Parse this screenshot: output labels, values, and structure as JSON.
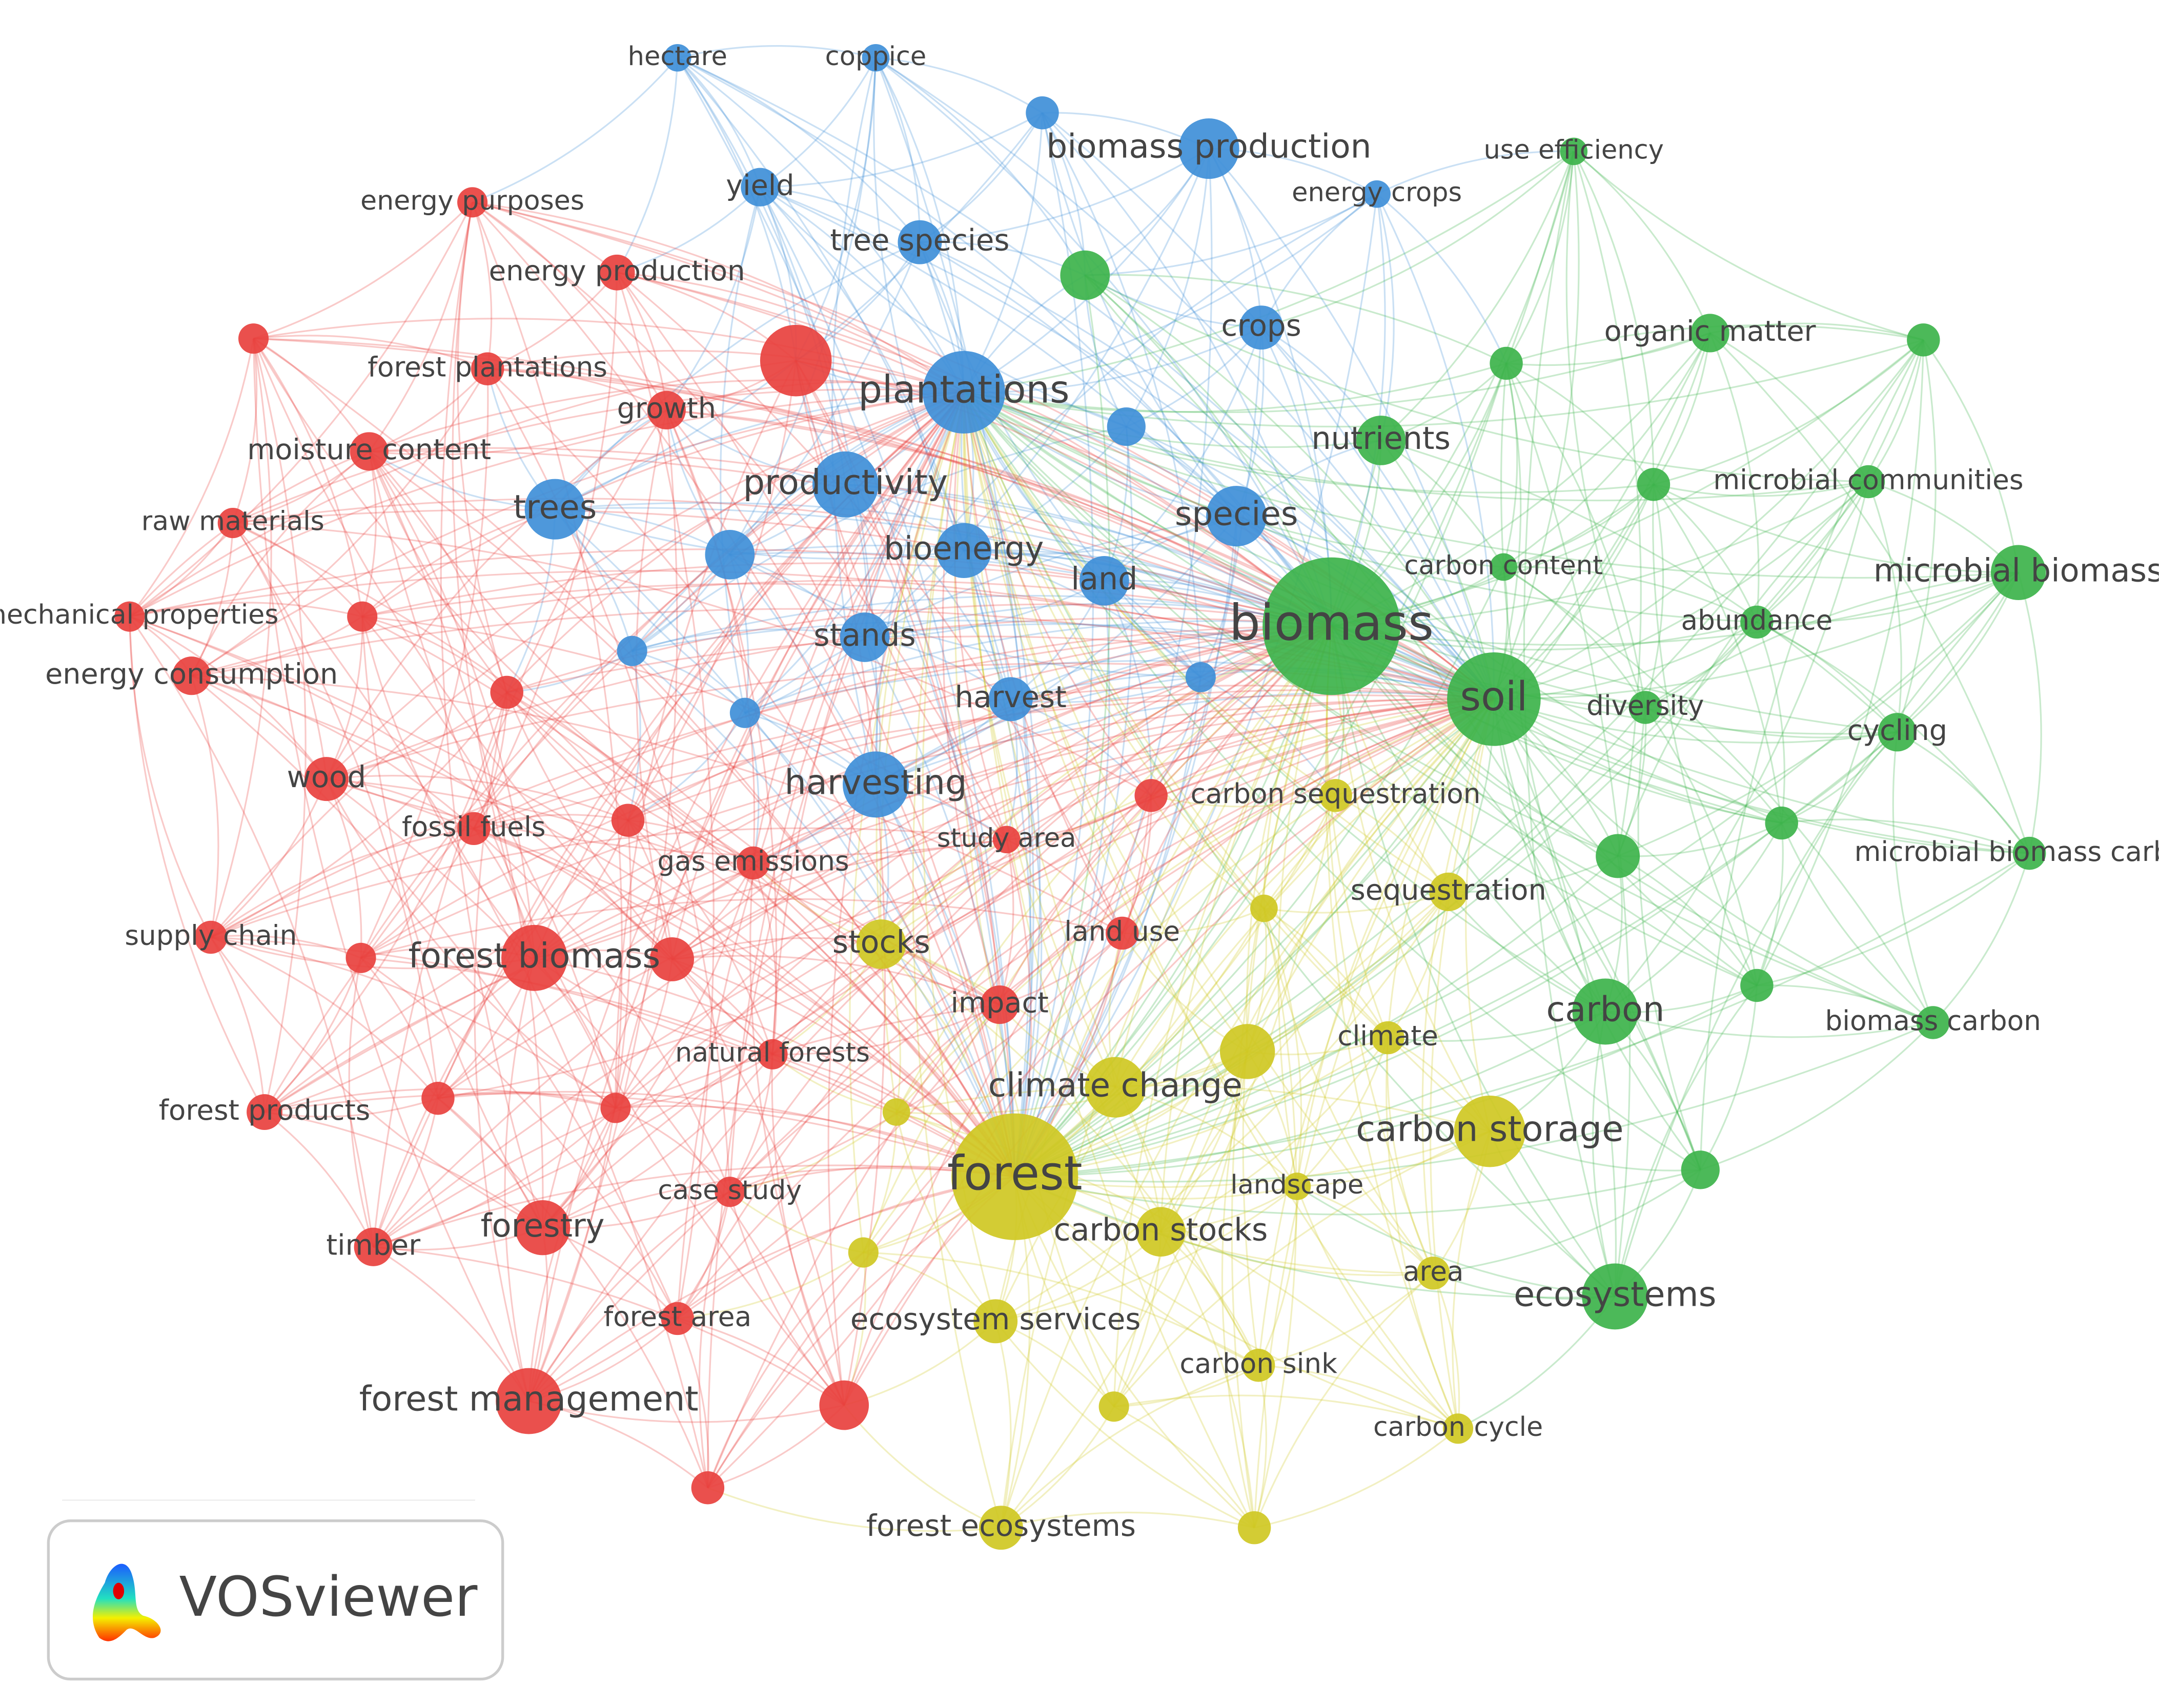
{
  "network": {
    "nodes": [
      {
        "label": "hectare",
        "color": "#3f8fd8"
      },
      {
        "label": "coppice",
        "color": "#3f8fd8"
      },
      {
        "label": null,
        "color": "#3f8fd8"
      },
      {
        "label": "biomass production",
        "color": "#3f8fd8"
      },
      {
        "label": "yield",
        "color": "#3f8fd8"
      },
      {
        "label": "tree species",
        "color": "#3f8fd8"
      },
      {
        "label": "crops",
        "color": "#3f8fd8"
      },
      {
        "label": "plantations",
        "color": "#3f8fd8"
      },
      {
        "label": null,
        "color": "#3f8fd8"
      },
      {
        "label": "productivity",
        "color": "#3f8fd8"
      },
      {
        "label": "trees",
        "color": "#3f8fd8"
      },
      {
        "label": "bioenergy",
        "color": "#3f8fd8"
      },
      {
        "label": "land",
        "color": "#3f8fd8"
      },
      {
        "label": "species",
        "color": "#3f8fd8"
      },
      {
        "label": null,
        "color": "#3f8fd8"
      },
      {
        "label": "stands",
        "color": "#3f8fd8"
      },
      {
        "label": null,
        "color": "#3f8fd8"
      },
      {
        "label": null,
        "color": "#3f8fd8"
      },
      {
        "label": "harvest",
        "color": "#3f8fd8"
      },
      {
        "label": null,
        "color": "#3f8fd8"
      },
      {
        "label": "harvesting",
        "color": "#3f8fd8"
      },
      {
        "label": "energy crops",
        "color": "#3f8fd8"
      },
      {
        "label": "use efficiency",
        "color": "#3db34b"
      },
      {
        "label": null,
        "color": "#3db34b"
      },
      {
        "label": "organic matter",
        "color": "#3db34b"
      },
      {
        "label": null,
        "color": "#3db34b"
      },
      {
        "label": null,
        "color": "#3db34b"
      },
      {
        "label": "nutrients",
        "color": "#3db34b"
      },
      {
        "label": "microbial communities",
        "color": "#3db34b"
      },
      {
        "label": null,
        "color": "#3db34b"
      },
      {
        "label": "carbon content",
        "color": "#3db34b"
      },
      {
        "label": "microbial biomass",
        "color": "#3db34b"
      },
      {
        "label": "biomass",
        "color": "#3db34b"
      },
      {
        "label": "abundance",
        "color": "#3db34b"
      },
      {
        "label": "soil",
        "color": "#3db34b"
      },
      {
        "label": "diversity",
        "color": "#3db34b"
      },
      {
        "label": "cycling",
        "color": "#3db34b"
      },
      {
        "label": null,
        "color": "#3db34b"
      },
      {
        "label": null,
        "color": "#3db34b"
      },
      {
        "label": "microbial biomass carbon",
        "color": "#3db34b"
      },
      {
        "label": null,
        "color": "#3db34b"
      },
      {
        "label": "carbon",
        "color": "#3db34b"
      },
      {
        "label": "biomass carbon",
        "color": "#3db34b"
      },
      {
        "label": null,
        "color": "#3db34b"
      },
      {
        "label": "ecosystems",
        "color": "#3db34b"
      },
      {
        "label": "carbon sequestration",
        "color": "#cfc823"
      },
      {
        "label": "sequestration",
        "color": "#cfc823"
      },
      {
        "label": null,
        "color": "#cfc823"
      },
      {
        "label": "stocks",
        "color": "#cfc823"
      },
      {
        "label": "climate",
        "color": "#cfc823"
      },
      {
        "label": null,
        "color": "#cfc823"
      },
      {
        "label": "climate change",
        "color": "#cfc823"
      },
      {
        "label": null,
        "color": "#cfc823"
      },
      {
        "label": "carbon storage",
        "color": "#cfc823"
      },
      {
        "label": "forest",
        "color": "#cfc823"
      },
      {
        "label": "landscape",
        "color": "#cfc823"
      },
      {
        "label": "carbon stocks",
        "color": "#cfc823"
      },
      {
        "label": null,
        "color": "#cfc823"
      },
      {
        "label": "area",
        "color": "#cfc823"
      },
      {
        "label": "ecosystem services",
        "color": "#cfc823"
      },
      {
        "label": "carbon sink",
        "color": "#cfc823"
      },
      {
        "label": null,
        "color": "#cfc823"
      },
      {
        "label": "carbon cycle",
        "color": "#cfc823"
      },
      {
        "label": "forest ecosystems",
        "color": "#cfc823"
      },
      {
        "label": null,
        "color": "#cfc823"
      },
      {
        "label": "energy purposes",
        "color": "#e8413e"
      },
      {
        "label": "energy production",
        "color": "#e8413e"
      },
      {
        "label": null,
        "color": "#e8413e"
      },
      {
        "label": null,
        "color": "#e8413e"
      },
      {
        "label": "forest plantations",
        "color": "#e8413e"
      },
      {
        "label": "growth",
        "color": "#e8413e"
      },
      {
        "label": "moisture content",
        "color": "#e8413e"
      },
      {
        "label": "raw materials",
        "color": "#e8413e"
      },
      {
        "label": "mechanical properties",
        "color": "#e8413e"
      },
      {
        "label": null,
        "color": "#e8413e"
      },
      {
        "label": "energy consumption",
        "color": "#e8413e"
      },
      {
        "label": null,
        "color": "#e8413e"
      },
      {
        "label": "wood",
        "color": "#e8413e"
      },
      {
        "label": "fossil fuels",
        "color": "#e8413e"
      },
      {
        "label": null,
        "color": "#e8413e"
      },
      {
        "label": "gas emissions",
        "color": "#e8413e"
      },
      {
        "label": null,
        "color": "#e8413e"
      },
      {
        "label": "study area",
        "color": "#e8413e"
      },
      {
        "label": "supply chain",
        "color": "#e8413e"
      },
      {
        "label": null,
        "color": "#e8413e"
      },
      {
        "label": "forest biomass",
        "color": "#e8413e"
      },
      {
        "label": null,
        "color": "#e8413e"
      },
      {
        "label": "land use",
        "color": "#e8413e"
      },
      {
        "label": "impact",
        "color": "#e8413e"
      },
      {
        "label": "natural forests",
        "color": "#e8413e"
      },
      {
        "label": null,
        "color": "#e8413e"
      },
      {
        "label": null,
        "color": "#e8413e"
      },
      {
        "label": "forest products",
        "color": "#e8413e"
      },
      {
        "label": "case study",
        "color": "#e8413e"
      },
      {
        "label": "forestry",
        "color": "#e8413e"
      },
      {
        "label": "timber",
        "color": "#e8413e"
      },
      {
        "label": "forest area",
        "color": "#e8413e"
      },
      {
        "label": null,
        "color": "#e8413e"
      },
      {
        "label": "forest management",
        "color": "#e8413e"
      },
      {
        "label": null,
        "color": "#e8413e"
      }
    ]
  },
  "logo": {
    "text": "VOSviewer"
  }
}
